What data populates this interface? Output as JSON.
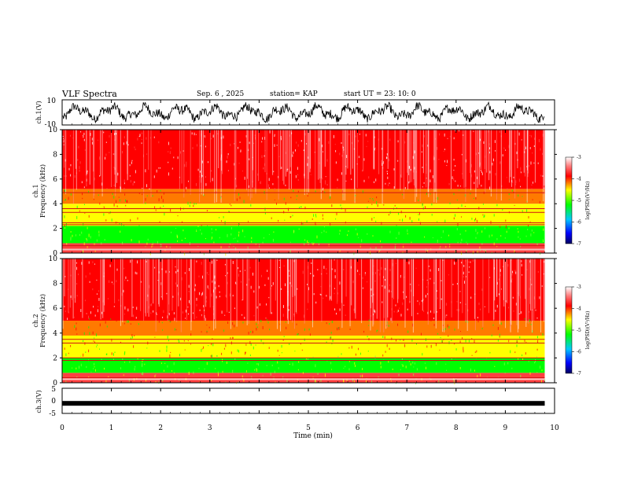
{
  "header": {
    "title": "VLF Spectra",
    "date": "Sep. 6  , 2025",
    "station": "station= KAP",
    "start": "start  UT  =   23: 10: 0"
  },
  "colors": {
    "high": "#ff0000",
    "mid": "#ffff00",
    "low": "#00ff00",
    "min": "#0000ff",
    "max": "#ffffff",
    "trace": "#000000"
  },
  "chart_data": [
    {
      "type": "line",
      "name": "ch1-voltage",
      "ylabel": "ch.1(V)",
      "ylim": [
        -10,
        10
      ],
      "yticks": [
        "10",
        "-10"
      ],
      "description_values": "oscillating waveform between about -6 and 7 V"
    },
    {
      "type": "heatmap",
      "name": "ch1-spectrogram",
      "ylabel_top": "ch.1",
      "ylabel": "Frequency  (kHz)",
      "ylim": [
        0,
        10
      ],
      "yticks": [
        "0",
        "2",
        "4",
        "6",
        "8",
        "10"
      ],
      "colorbar": {
        "label": "log(PSD)(V²/Hz)",
        "range": [
          -7,
          -3
        ],
        "ticks": [
          "-3",
          "-4",
          "-5",
          "-6",
          "-7"
        ]
      },
      "bands_khz": [
        {
          "from": 0,
          "to": 0.8,
          "level": "mixed"
        },
        {
          "from": 0.8,
          "to": 2.2,
          "level": "low"
        },
        {
          "from": 2.2,
          "to": 4.0,
          "level": "mid"
        },
        {
          "from": 4.0,
          "to": 5.2,
          "level": "mid-high"
        },
        {
          "from": 5.2,
          "to": 10,
          "level": "high"
        }
      ],
      "lines_khz": [
        0.3,
        0.6,
        2.3,
        2.45,
        3.3,
        3.6,
        4.9
      ]
    },
    {
      "type": "heatmap",
      "name": "ch2-spectrogram",
      "ylabel_top": "ch.2",
      "ylabel": "Frequency  (kHz)",
      "ylim": [
        0,
        10
      ],
      "yticks": [
        "0",
        "2",
        "4",
        "6",
        "8",
        "10"
      ],
      "colorbar": {
        "label": "log(PSD)(V²/Hz)",
        "range": [
          -7,
          -3
        ],
        "ticks": [
          "-3",
          "-4",
          "-5",
          "-6",
          "-7"
        ]
      },
      "bands_khz": [
        {
          "from": 0,
          "to": 0.8,
          "level": "mixed"
        },
        {
          "from": 0.8,
          "to": 2.0,
          "level": "low"
        },
        {
          "from": 2.0,
          "to": 3.8,
          "level": "mid"
        },
        {
          "from": 3.8,
          "to": 5.0,
          "level": "mid-high"
        },
        {
          "from": 5.0,
          "to": 10,
          "level": "high"
        }
      ],
      "lines_khz": [
        0.4,
        1.8,
        2.0,
        3.2,
        3.5
      ]
    },
    {
      "type": "line",
      "name": "ch3-voltage",
      "ylabel": "ch.3(V)",
      "ylim": [
        -5,
        5
      ],
      "yticks": [
        "5",
        "0",
        "-5"
      ],
      "value_level": -1
    }
  ],
  "xaxis": {
    "label": "Time  (min)",
    "xlim": [
      0,
      10
    ],
    "ticks": [
      "0",
      "1",
      "2",
      "3",
      "4",
      "5",
      "6",
      "7",
      "8",
      "9",
      "10"
    ],
    "data_end": 9.8
  }
}
